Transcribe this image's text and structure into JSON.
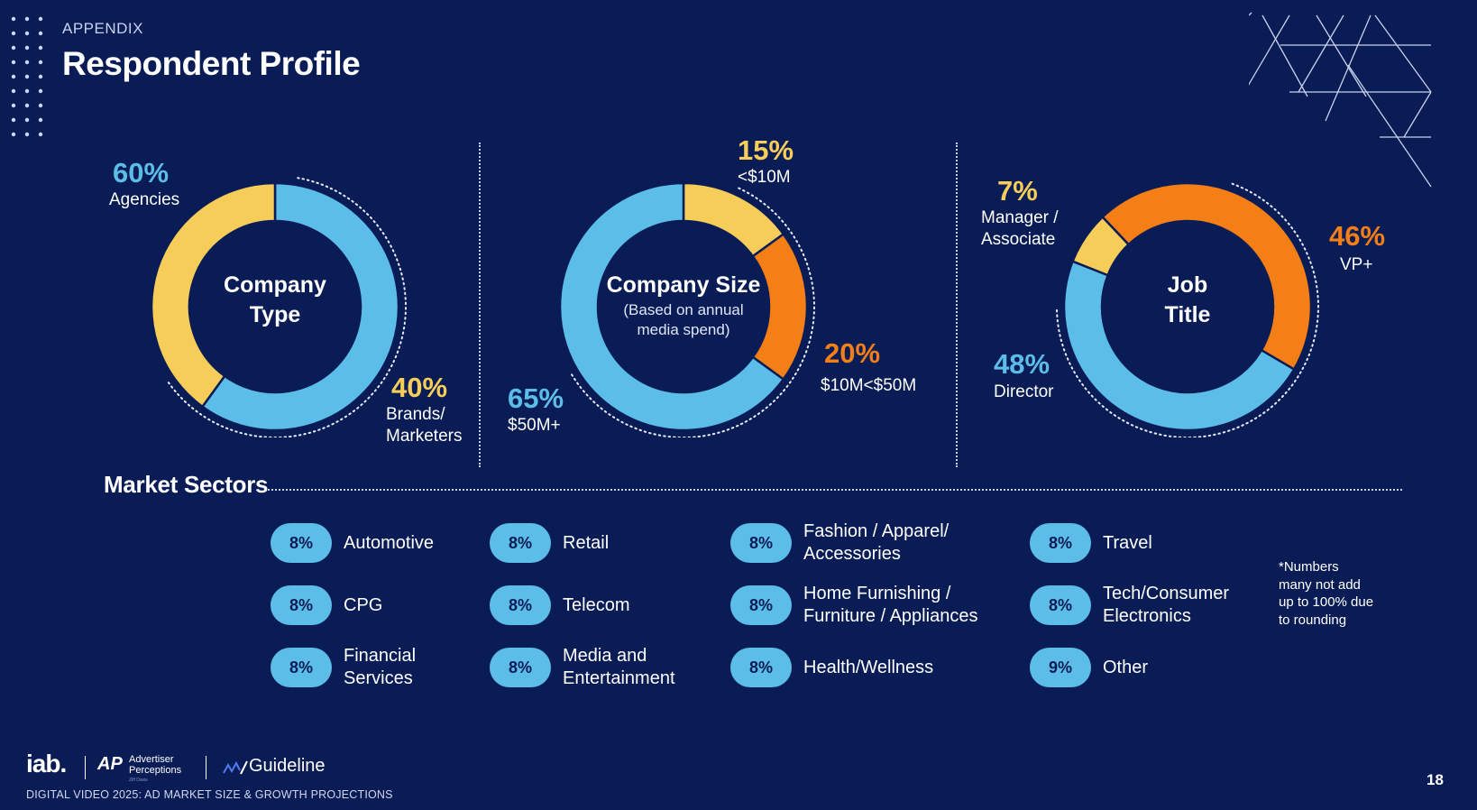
{
  "header": {
    "eyebrow": "APPENDIX",
    "title": "Respondent Profile"
  },
  "colors": {
    "background": "#0a1c56",
    "blue": "#5bbde8",
    "yellow": "#f7cd5a",
    "orange": "#f47f17"
  },
  "chart_data": [
    {
      "type": "pie",
      "center_title": "Company Type",
      "center_title_lines": [
        "Company",
        "Type"
      ],
      "series": [
        {
          "name": "Agencies",
          "value": 60,
          "label": "60%",
          "color": "#5bbde8"
        },
        {
          "name": "Brands/ Marketers",
          "name_lines": [
            "Brands/",
            "Marketers"
          ],
          "value": 40,
          "label": "40%",
          "color": "#f7cd5a"
        }
      ]
    },
    {
      "type": "pie",
      "center_title": "Company Size",
      "center_subtitle_lines": [
        "(Based on annual",
        "media spend)"
      ],
      "series": [
        {
          "name": "<$10M",
          "value": 15,
          "label": "15%",
          "color": "#f7cd5a"
        },
        {
          "name": "$10M<$50M",
          "value": 20,
          "label": "20%",
          "color": "#f47f17"
        },
        {
          "name": "$50M+",
          "value": 65,
          "label": "65%",
          "color": "#5bbde8"
        }
      ]
    },
    {
      "type": "pie",
      "center_title": "Job Title",
      "center_title_lines": [
        "Job",
        "Title"
      ],
      "series": [
        {
          "name": "VP+",
          "value": 46,
          "label": "46%",
          "color": "#f47f17"
        },
        {
          "name": "Director",
          "value": 48,
          "label": "48%",
          "color": "#5bbde8"
        },
        {
          "name": "Manager / Associate",
          "name_lines": [
            "Manager /",
            "Associate"
          ],
          "value": 7,
          "label": "7%",
          "color": "#f7cd5a"
        }
      ]
    },
    {
      "type": "table",
      "title": "Market Sectors",
      "rows": [
        {
          "label": "Automotive",
          "value": "8%"
        },
        {
          "label": "CPG",
          "value": "8%"
        },
        {
          "label": "Financial Services",
          "label_lines": [
            "Financial",
            "Services"
          ],
          "value": "8%"
        },
        {
          "label": "Retail",
          "value": "8%"
        },
        {
          "label": "Telecom",
          "value": "8%"
        },
        {
          "label": "Media and Entertainment",
          "label_lines": [
            "Media and",
            "Entertainment"
          ],
          "value": "8%"
        },
        {
          "label": "Fashion / Apparel/ Accessories",
          "label_lines": [
            "Fashion / Apparel/",
            "Accessories"
          ],
          "value": "8%"
        },
        {
          "label": "Home Furnishing / Furniture / Appliances",
          "label_lines": [
            "Home Furnishing /",
            "Furniture / Appliances"
          ],
          "value": "8%"
        },
        {
          "label": "Health/Wellness",
          "value": "8%"
        },
        {
          "label": "Travel",
          "value": "8%"
        },
        {
          "label": "Tech/Consumer Electronics",
          "label_lines": [
            "Tech/Consumer",
            "Electronics"
          ],
          "value": "8%"
        },
        {
          "label": "Other",
          "value": "9%"
        }
      ]
    }
  ],
  "footnote_lines": [
    "*Numbers",
    "many not add",
    "up to 100% due",
    "to rounding"
  ],
  "footer": {
    "iab": "iab.",
    "ap_mark": "AP",
    "ap_lines": [
      "Advertiser",
      "Perceptions"
    ],
    "ap_tagline": "Ziff Davis",
    "guideline": "Guideline",
    "text": "DIGITAL VIDEO 2025: AD MARKET SIZE & GROWTH PROJECTIONS",
    "page_number": "18"
  }
}
